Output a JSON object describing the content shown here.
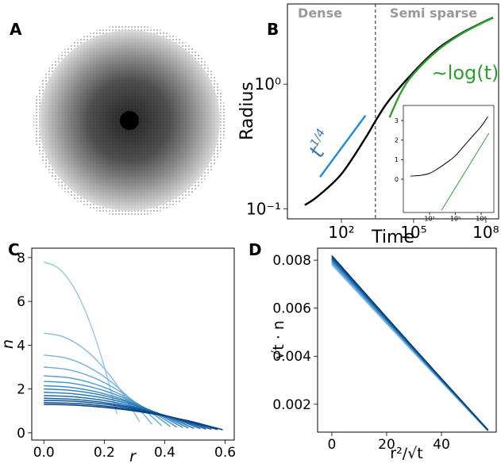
{
  "chart_data": [
    {
      "type": "image",
      "panel": "A"
    },
    {
      "type": "line",
      "panel": "B",
      "xlabel": "Time",
      "ylabel": "Radius",
      "xlog": true,
      "ylog": true,
      "xlim": [
        0.573,
        340000000
      ],
      "ylim": [
        0.083,
        4.4
      ],
      "xticks": [
        {
          "value": 100,
          "label": "10²"
        },
        {
          "value": 100000,
          "label": "10⁵"
        },
        {
          "value": 100000000,
          "label": "10⁸"
        }
      ],
      "yticks": [
        {
          "value": 0.1,
          "label": "10⁻¹"
        },
        {
          "value": 1,
          "label": "10⁰"
        }
      ],
      "vline": 2570,
      "annotations": [
        {
          "text": "Dense",
          "color": "#999999"
        },
        {
          "text": "Semi sparse",
          "color": "#999999"
        },
        {
          "text": "t",
          "sup": "1/4",
          "color": "#3a7cae"
        },
        {
          "text": "∼log(t)",
          "color": "#2ca02c"
        }
      ],
      "series": [
        {
          "color": "#000000",
          "x": [
            3,
            10,
            100,
            1000,
            3000,
            10000,
            100000,
            1000000,
            10000000,
            100000000,
            200000000
          ],
          "values": [
            0.107,
            0.125,
            0.19,
            0.37,
            0.53,
            0.75,
            1.25,
            1.92,
            2.57,
            3.22,
            3.42
          ]
        },
        {
          "color": "#1f88d8",
          "x": [
            13,
            1000
          ],
          "values": [
            0.18,
            0.56
          ]
        },
        {
          "color": "#2ca02c",
          "x": [
            10000,
            30000,
            100000,
            1000000,
            10000000,
            100000000,
            200000000
          ],
          "values": [
            0.54,
            0.86,
            1.21,
            1.87,
            2.54,
            3.2,
            3.4
          ]
        }
      ],
      "inset": {
        "xlog": true,
        "xlim": [
          0.089,
          3000000000
        ],
        "ylim": [
          -1.7,
          3.77
        ],
        "xticks": [
          {
            "value": 100,
            "label": "10²"
          },
          {
            "value": 100000,
            "label": "10⁵"
          },
          {
            "value": 100000000,
            "label": "10⁸"
          }
        ],
        "yticks": [
          0,
          1,
          2,
          3
        ],
        "series": [
          {
            "color": "#000000",
            "x": [
              0.6,
              10,
              100,
              1000,
              10000,
              100000,
              1000000,
              10000000,
              100000000,
              600000000
            ],
            "values": [
              0.16,
              0.2,
              0.3,
              0.55,
              0.85,
              1.2,
              1.7,
              2.2,
              2.7,
              3.2
            ]
          },
          {
            "color": "#2ca02c",
            "x": [
              2500,
              800000000
            ],
            "values": [
              -1.58,
              2.35
            ]
          }
        ]
      }
    },
    {
      "type": "line",
      "panel": "C",
      "xlabel": "r",
      "ylabel": "n",
      "xlim": [
        -0.04,
        0.63
      ],
      "ylim": [
        -0.33,
        8.43
      ],
      "xticks": [
        {
          "value": 0,
          "label": "0.0"
        },
        0.2,
        0.4,
        0.6
      ],
      "yticks": [
        0,
        2,
        4,
        6,
        8
      ],
      "series": [
        {
          "color": "#9ecae1",
          "x": [
            0,
            0.048,
            0.097,
            0.145,
            0.193,
            0.242
          ],
          "values": [
            7.8,
            7.52,
            6.69,
            5.3,
            3.35,
            0.85
          ]
        },
        {
          "color": "#8dc0df",
          "x": [
            0,
            0.063,
            0.127,
            0.19,
            0.253,
            0.317
          ],
          "values": [
            4.55,
            4.39,
            3.9,
            3.09,
            1.96,
            0.5
          ]
        },
        {
          "color": "#7bb6dc",
          "x": [
            0,
            0.072,
            0.143,
            0.215,
            0.287,
            0.358
          ],
          "values": [
            3.55,
            3.42,
            3.04,
            2.41,
            1.53,
            0.39
          ]
        },
        {
          "color": "#6aabd6",
          "x": [
            0,
            0.078,
            0.156,
            0.234,
            0.312,
            0.39
          ],
          "values": [
            3.0,
            2.89,
            2.57,
            2.04,
            1.29,
            0.33
          ]
        },
        {
          "color": "#5ba1d0",
          "x": [
            0,
            0.084,
            0.168,
            0.251,
            0.335,
            0.419
          ],
          "values": [
            2.6,
            2.51,
            2.23,
            1.77,
            1.12,
            0.28
          ]
        },
        {
          "color": "#4d96ca",
          "x": [
            0,
            0.088,
            0.176,
            0.264,
            0.352,
            0.44
          ],
          "values": [
            2.35,
            2.27,
            2.02,
            1.6,
            1.01,
            0.26
          ]
        },
        {
          "color": "#3f8bc3",
          "x": [
            0,
            0.092,
            0.184,
            0.276,
            0.368,
            0.46
          ],
          "values": [
            2.15,
            2.07,
            1.84,
            1.46,
            0.92,
            0.24
          ]
        },
        {
          "color": "#3381bc",
          "x": [
            0,
            0.096,
            0.191,
            0.287,
            0.382,
            0.478
          ],
          "values": [
            2.0,
            1.93,
            1.72,
            1.36,
            0.86,
            0.22
          ]
        },
        {
          "color": "#2875b4",
          "x": [
            0,
            0.099,
            0.199,
            0.298,
            0.397,
            0.497
          ],
          "values": [
            1.85,
            1.78,
            1.59,
            1.26,
            0.8,
            0.2
          ]
        },
        {
          "color": "#1e6aab",
          "x": [
            0,
            0.104,
            0.207,
            0.311,
            0.414,
            0.518
          ],
          "values": [
            1.7,
            1.64,
            1.46,
            1.15,
            0.73,
            0.19
          ]
        },
        {
          "color": "#155fa0",
          "x": [
            0,
            0.107,
            0.215,
            0.322,
            0.43,
            0.537
          ],
          "values": [
            1.58,
            1.52,
            1.35,
            1.07,
            0.68,
            0.17
          ]
        },
        {
          "color": "#0d5496",
          "x": [
            0,
            0.111,
            0.222,
            0.333,
            0.444,
            0.555
          ],
          "values": [
            1.48,
            1.43,
            1.27,
            1.01,
            0.64,
            0.16
          ]
        },
        {
          "color": "#09498a",
          "x": [
            0,
            0.115,
            0.23,
            0.345,
            0.46,
            0.575
          ],
          "values": [
            1.38,
            1.33,
            1.18,
            0.94,
            0.59,
            0.15
          ]
        },
        {
          "color": "#083d7a",
          "x": [
            0,
            0.118,
            0.237,
            0.355,
            0.474,
            0.592
          ],
          "values": [
            1.3,
            1.25,
            1.11,
            0.88,
            0.56,
            0.14
          ]
        }
      ]
    },
    {
      "type": "line",
      "panel": "D",
      "xlabel": "r²/√t",
      "ylabel": "√t · n",
      "xlim": [
        -5.2,
        60
      ],
      "ylim": [
        0.00084,
        0.0085
      ],
      "xticks": [
        0,
        20,
        40
      ],
      "yticks": [
        0.002,
        0.004,
        0.006,
        0.008
      ],
      "x": [
        0,
        28.5,
        57
      ],
      "series": [
        {
          "color": "#9ecae1",
          "values": [
            0.0078,
            0.00431,
            0.00088
          ]
        },
        {
          "color": "#8dc0df",
          "values": [
            0.00783,
            0.00433,
            0.00089
          ]
        },
        {
          "color": "#7bb6dc",
          "values": [
            0.00786,
            0.00435,
            0.0009
          ]
        },
        {
          "color": "#6aabd6",
          "values": [
            0.00789,
            0.00437,
            0.0009
          ]
        },
        {
          "color": "#5ba1d0",
          "values": [
            0.00792,
            0.00438,
            0.0009
          ]
        },
        {
          "color": "#4d96ca",
          "values": [
            0.00795,
            0.0044,
            0.00091
          ]
        },
        {
          "color": "#3f8bc3",
          "values": [
            0.00798,
            0.00442,
            0.00091
          ]
        },
        {
          "color": "#3381bc",
          "values": [
            0.00801,
            0.00443,
            0.00091
          ]
        },
        {
          "color": "#2875b4",
          "values": [
            0.00804,
            0.00445,
            0.00092
          ]
        },
        {
          "color": "#1e6aab",
          "values": [
            0.00807,
            0.00447,
            0.00092
          ]
        },
        {
          "color": "#155fa0",
          "values": [
            0.0081,
            0.00448,
            0.00092
          ]
        },
        {
          "color": "#0d5496",
          "values": [
            0.00813,
            0.0045,
            0.00093
          ]
        },
        {
          "color": "#09498a",
          "values": [
            0.00816,
            0.00452,
            0.00093
          ]
        },
        {
          "color": "#083d7a",
          "values": [
            0.00819,
            0.00453,
            0.00093
          ]
        }
      ]
    }
  ]
}
